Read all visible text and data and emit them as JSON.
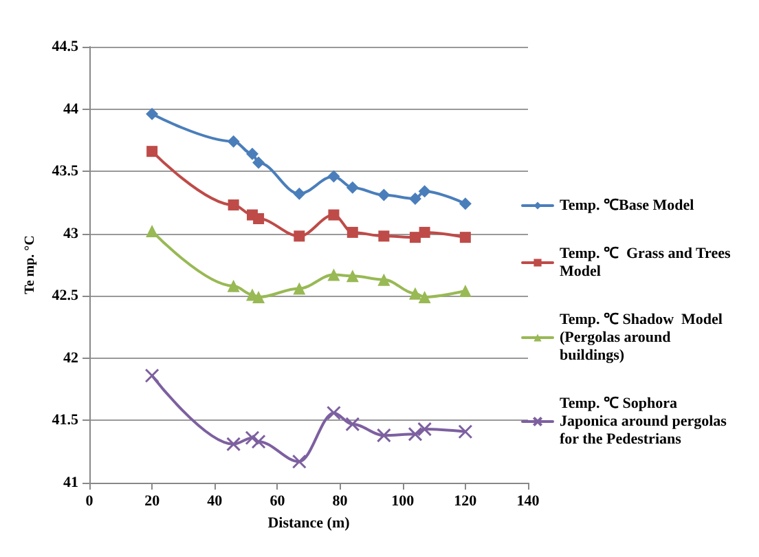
{
  "chart_data": {
    "type": "line",
    "xlabel": "Distance (m)",
    "ylabel": "Te mp. °C",
    "xlim": [
      0,
      140
    ],
    "xticks": [
      0,
      20,
      40,
      60,
      80,
      100,
      120,
      140
    ],
    "ylim": [
      41,
      44.5
    ],
    "yticks": [
      41,
      41.5,
      42,
      42.5,
      43,
      43.5,
      44,
      44.5
    ],
    "grid": "y",
    "legend": "right",
    "x": [
      20,
      46,
      52,
      54,
      67,
      78,
      84,
      94,
      104,
      107,
      120
    ],
    "series": [
      {
        "name": "Temp. ℃Base Model",
        "color": "#4a7ebb",
        "marker": "diamond",
        "values": [
          43.96,
          43.74,
          43.64,
          43.57,
          43.32,
          43.46,
          43.37,
          43.31,
          43.28,
          43.34,
          43.24
        ]
      },
      {
        "name": "Temp. ℃  Grass and Trees Model",
        "color": "#be4b48",
        "marker": "square",
        "values": [
          43.66,
          43.23,
          43.15,
          43.12,
          42.98,
          43.15,
          43.01,
          42.98,
          42.97,
          43.01,
          42.97
        ]
      },
      {
        "name": "Temp. ℃ Shadow  Model (Pergolas around buildings)",
        "color": "#98b954",
        "marker": "triangle",
        "values": [
          43.02,
          42.58,
          42.51,
          42.49,
          42.56,
          42.67,
          42.66,
          42.63,
          42.52,
          42.49,
          42.54
        ]
      },
      {
        "name": "Temp. ℃ Sophora Japonica around pergolas for the Pedestrians",
        "color": "#7d60a0",
        "marker": "cross",
        "values": [
          41.86,
          41.31,
          41.36,
          41.33,
          41.17,
          41.56,
          41.47,
          41.38,
          41.39,
          41.43,
          41.41
        ]
      }
    ]
  }
}
